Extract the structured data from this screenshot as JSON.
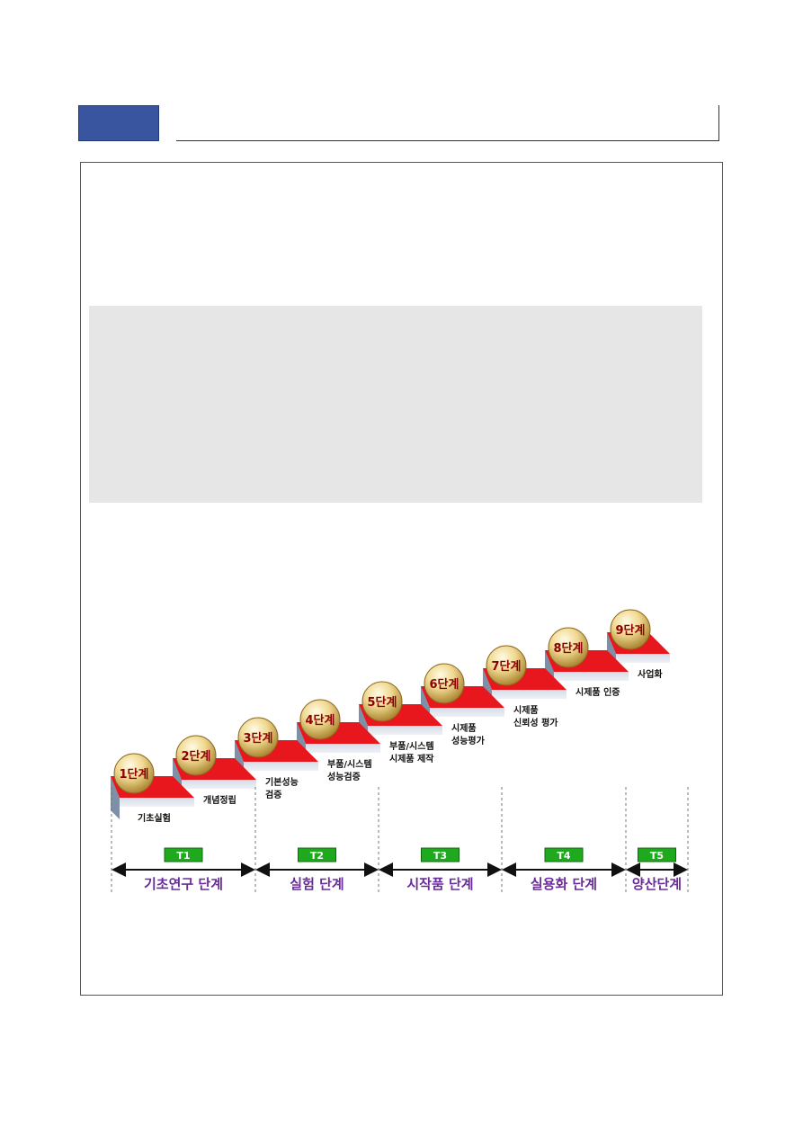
{
  "steps": [
    {
      "stage": "1단계",
      "desc": [
        "기초실험"
      ]
    },
    {
      "stage": "2단계",
      "desc": [
        "개념정립"
      ]
    },
    {
      "stage": "3단계",
      "desc": [
        "기본성능",
        "검증"
      ]
    },
    {
      "stage": "4단계",
      "desc": [
        "부품/시스템",
        "성능검증"
      ]
    },
    {
      "stage": "5단계",
      "desc": [
        "부품/시스템",
        "시제품 제작"
      ]
    },
    {
      "stage": "6단계",
      "desc": [
        "시제품",
        "성능평가"
      ]
    },
    {
      "stage": "7단계",
      "desc": [
        "시제품",
        "신뢰성 평가"
      ]
    },
    {
      "stage": "8단계",
      "desc": [
        "시제품 인증"
      ]
    },
    {
      "stage": "9단계",
      "desc": [
        "사업화"
      ]
    }
  ],
  "phases": [
    {
      "tag": "T1",
      "name": "기초연구 단계"
    },
    {
      "tag": "T2",
      "name": "실험 단계"
    },
    {
      "tag": "T3",
      "name": "시작품 단계"
    },
    {
      "tag": "T4",
      "name": "실용화 단계"
    },
    {
      "tag": "T5",
      "name": "양산단계"
    }
  ],
  "colors": {
    "step_top": "#e8161d",
    "step_front": "#bcc7d8",
    "step_side": "#7e8fa8",
    "ball": "#e9c973",
    "t_badge": "#1ea91e",
    "phase_text": "#6a2c9a",
    "stage_text": "#8b0000",
    "header_badge": "#3a55a0",
    "panel": "#e6e6e6"
  }
}
